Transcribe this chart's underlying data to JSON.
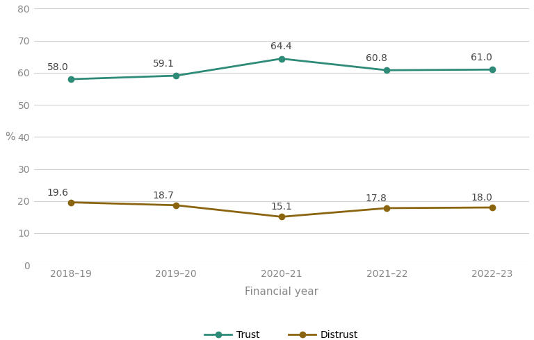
{
  "categories": [
    "2018–19",
    "2019–20",
    "2020–21",
    "2021–22",
    "2022–23"
  ],
  "trust_values": [
    58.0,
    59.1,
    64.4,
    60.8,
    61.0
  ],
  "distrust_values": [
    19.6,
    18.7,
    15.1,
    17.8,
    18.0
  ],
  "trust_color": "#2e8b78",
  "distrust_color": "#8b6410",
  "background_color": "#ffffff",
  "plot_bg_color": "#ffffff",
  "ylabel": "%",
  "xlabel": "Financial year",
  "ylim": [
    0,
    80
  ],
  "yticks": [
    0,
    10,
    20,
    30,
    40,
    50,
    60,
    70,
    80
  ],
  "tick_fontsize": 10,
  "annotation_fontsize": 10,
  "xlabel_fontsize": 11,
  "ylabel_fontsize": 11,
  "legend_labels": [
    "Trust",
    "Distrust"
  ],
  "marker": "o",
  "marker_size": 6,
  "line_width": 2.0,
  "grid_color": "#d0d0d0",
  "tick_color": "#888888",
  "annotation_color": "#444444"
}
